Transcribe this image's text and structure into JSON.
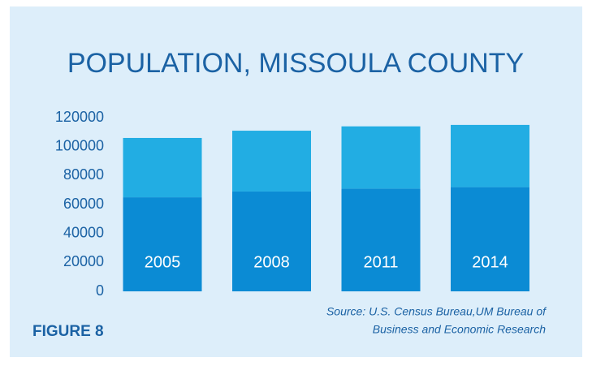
{
  "chart_data": {
    "type": "stacked_bar",
    "title": "POPULATION, MISSOULA COUNTY",
    "categories": [
      "2005",
      "2008",
      "2011",
      "2014"
    ],
    "series": [
      {
        "color": "#0b8bd4",
        "values": [
          65000,
          69000,
          71000,
          72000
        ]
      },
      {
        "color": "#22ade3",
        "values": [
          41000,
          42000,
          43000,
          43000
        ]
      }
    ],
    "ylim": [
      0,
      120000
    ],
    "yticks": [
      0,
      20000,
      40000,
      60000,
      80000,
      100000,
      120000
    ],
    "figure_label": "FIGURE 8",
    "source": [
      "Source: U.S. Census Bureau,UM Bureau of",
      "Business and Economic Research"
    ]
  }
}
